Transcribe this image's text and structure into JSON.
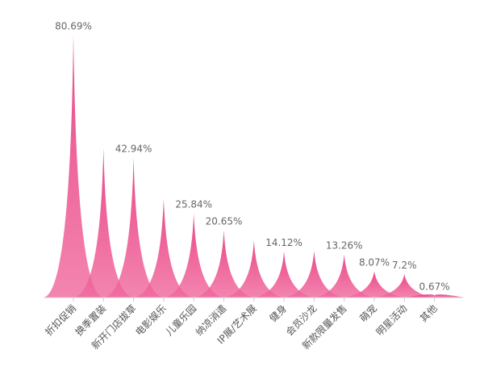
{
  "chart_data": {
    "type": "area",
    "categories": [
      "折扣促销",
      "换季置装",
      "新开门店拔草",
      "电影娱乐",
      "儿童乐园",
      "纳凉消遣",
      "IP展/艺术展",
      "健身",
      "会员沙龙",
      "新款限量发售",
      "萌宠",
      "明星活动",
      "其他"
    ],
    "values": [
      80.69,
      46.0,
      42.94,
      30.5,
      25.84,
      20.65,
      17.5,
      14.12,
      14.4,
      13.26,
      8.07,
      7.2,
      0.67
    ],
    "value_labels": [
      "80.69%",
      "",
      "42.94%",
      "",
      "25.84%",
      "20.65%",
      "",
      "14.12%",
      "",
      "13.26%",
      "8.07%",
      "7.2%",
      "0.67%"
    ],
    "ylim": [
      0,
      82
    ],
    "colors": [
      "#e5226d",
      "#f06a9f"
    ],
    "grid": false
  }
}
